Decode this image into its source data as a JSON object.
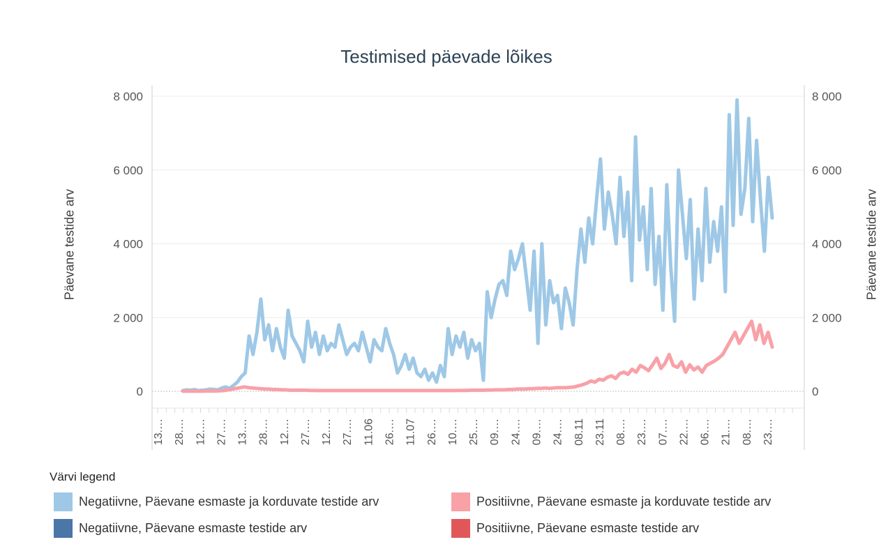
{
  "chart_data": {
    "type": "line",
    "title": "Testimised päevade lõikes",
    "ylabel_left": "Päevane testide arv",
    "ylabel_right": "Päevane testide arv",
    "ylim": [
      0,
      8000
    ],
    "yticks": [
      {
        "value": 0,
        "label": "0"
      },
      {
        "value": 2000,
        "label": "2 000"
      },
      {
        "value": 4000,
        "label": "4 000"
      },
      {
        "value": 6000,
        "label": "6 000"
      },
      {
        "value": 8000,
        "label": "8 000"
      }
    ],
    "x_tick_labels": [
      "13.…",
      "28.…",
      "12.…",
      "27.…",
      "13.…",
      "28.…",
      "12.…",
      "27.…",
      "12.…",
      "27.…",
      "11.06",
      "26.…",
      "11.07",
      "26.…",
      "10.…",
      "25.…",
      "09.…",
      "24.…",
      "09.…",
      "24.…",
      "08.11",
      "23.11",
      "08.…",
      "23.…",
      "07.…",
      "22.…",
      "06.…",
      "21.…",
      "08.…",
      "23.…"
    ],
    "series": [
      {
        "name": "Negatiivne, Päevane esmaste ja korduvate testide arv",
        "color": "#9ec8e6",
        "values": [
          20,
          40,
          30,
          50,
          20,
          30,
          40,
          60,
          50,
          40,
          90,
          120,
          80,
          160,
          250,
          400,
          500,
          1500,
          1000,
          1600,
          2500,
          1400,
          1800,
          1100,
          1700,
          1200,
          900,
          2200,
          1500,
          1300,
          1100,
          800,
          1900,
          1200,
          1600,
          1000,
          1500,
          1100,
          1300,
          1200,
          1800,
          1400,
          1000,
          1200,
          1300,
          1100,
          1600,
          1200,
          800,
          1400,
          1200,
          1100,
          1700,
          1300,
          1000,
          500,
          700,
          1000,
          600,
          900,
          500,
          400,
          600,
          300,
          500,
          250,
          700,
          400,
          1700,
          1000,
          1500,
          1200,
          1600,
          900,
          1400,
          1100,
          1300,
          300,
          2700,
          2000,
          2500,
          2900,
          3000,
          2600,
          3800,
          3300,
          3600,
          4000,
          3100,
          2200,
          3800,
          1300,
          4000,
          1800,
          3000,
          2400,
          2600,
          1700,
          2800,
          2400,
          1800,
          3300,
          4400,
          3500,
          4700,
          4000,
          5200,
          6300,
          4400,
          5400,
          4800,
          4000,
          5800,
          4200,
          5400,
          3000,
          6900,
          4100,
          5000,
          3300,
          5500,
          2900,
          4200,
          2200,
          5600,
          3400,
          1900,
          6000,
          4800,
          3600,
          5200,
          2500,
          4400,
          3000,
          5500,
          3500,
          4600,
          3800,
          5000,
          2700,
          7500,
          4500,
          7900,
          4800,
          5500,
          7400,
          4600,
          6800,
          5200,
          3800,
          5800,
          4700
        ]
      },
      {
        "name": "Positiivne, Päevane esmaste ja korduvate testide arv",
        "color": "#f8a1a7",
        "values": [
          5,
          5,
          5,
          5,
          5,
          5,
          10,
          10,
          10,
          15,
          20,
          40,
          60,
          80,
          100,
          120,
          100,
          90,
          80,
          70,
          60,
          60,
          50,
          50,
          40,
          40,
          30,
          30,
          30,
          30,
          30,
          25,
          25,
          20,
          20,
          20,
          20,
          20,
          20,
          20,
          20,
          20,
          20,
          20,
          20,
          20,
          20,
          20,
          20,
          20,
          20,
          20,
          20,
          20,
          20,
          20,
          20,
          20,
          20,
          20,
          20,
          20,
          20,
          20,
          20,
          20,
          20,
          25,
          25,
          25,
          30,
          30,
          30,
          30,
          35,
          35,
          40,
          40,
          40,
          50,
          50,
          60,
          60,
          60,
          70,
          70,
          80,
          80,
          90,
          80,
          90,
          100,
          100,
          100,
          110,
          120,
          150,
          180,
          220,
          280,
          250,
          330,
          300,
          380,
          420,
          350,
          480,
          520,
          460,
          600,
          520,
          700,
          640,
          560,
          720,
          900,
          620,
          760,
          1000,
          700,
          650,
          800,
          520,
          720,
          580,
          660,
          520,
          700,
          760,
          820,
          900,
          1000,
          1200,
          1400,
          1600,
          1300,
          1500,
          1700,
          1900,
          1400,
          1800,
          1300,
          1600,
          1200
        ]
      },
      {
        "name": "Negatiivne, Päevane esmaste testide arv",
        "color": "#4a76a8",
        "values": []
      },
      {
        "name": "Positiivne, Päevane esmaste testide arv",
        "color": "#e15759",
        "values": []
      }
    ]
  },
  "legend": {
    "title": "Värvi legend"
  }
}
